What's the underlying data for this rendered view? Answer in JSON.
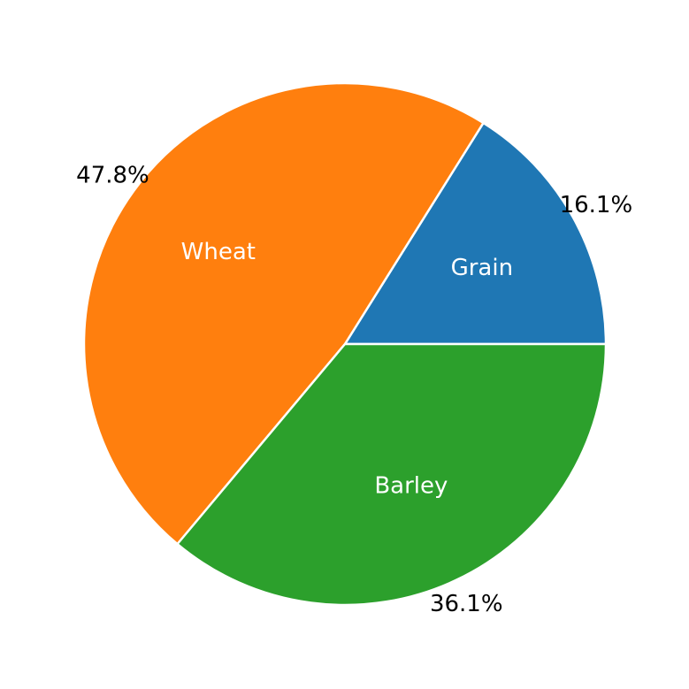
{
  "chart_data": {
    "type": "pie",
    "title": "",
    "categories": [
      "Grain",
      "Wheat",
      "Barley"
    ],
    "values": [
      16.1,
      47.8,
      36.1
    ],
    "percent_labels": [
      "16.1%",
      "47.8%",
      "36.1%"
    ],
    "colors": [
      "#1f77b4",
      "#ff7f0e",
      "#2ca02c"
    ],
    "start_angle_deg": 0,
    "direction": "counterclockwise",
    "edge_color": "#ffffff",
    "legend": "none",
    "category_label_color": "#ffffff",
    "percent_label_color": "#000000"
  }
}
